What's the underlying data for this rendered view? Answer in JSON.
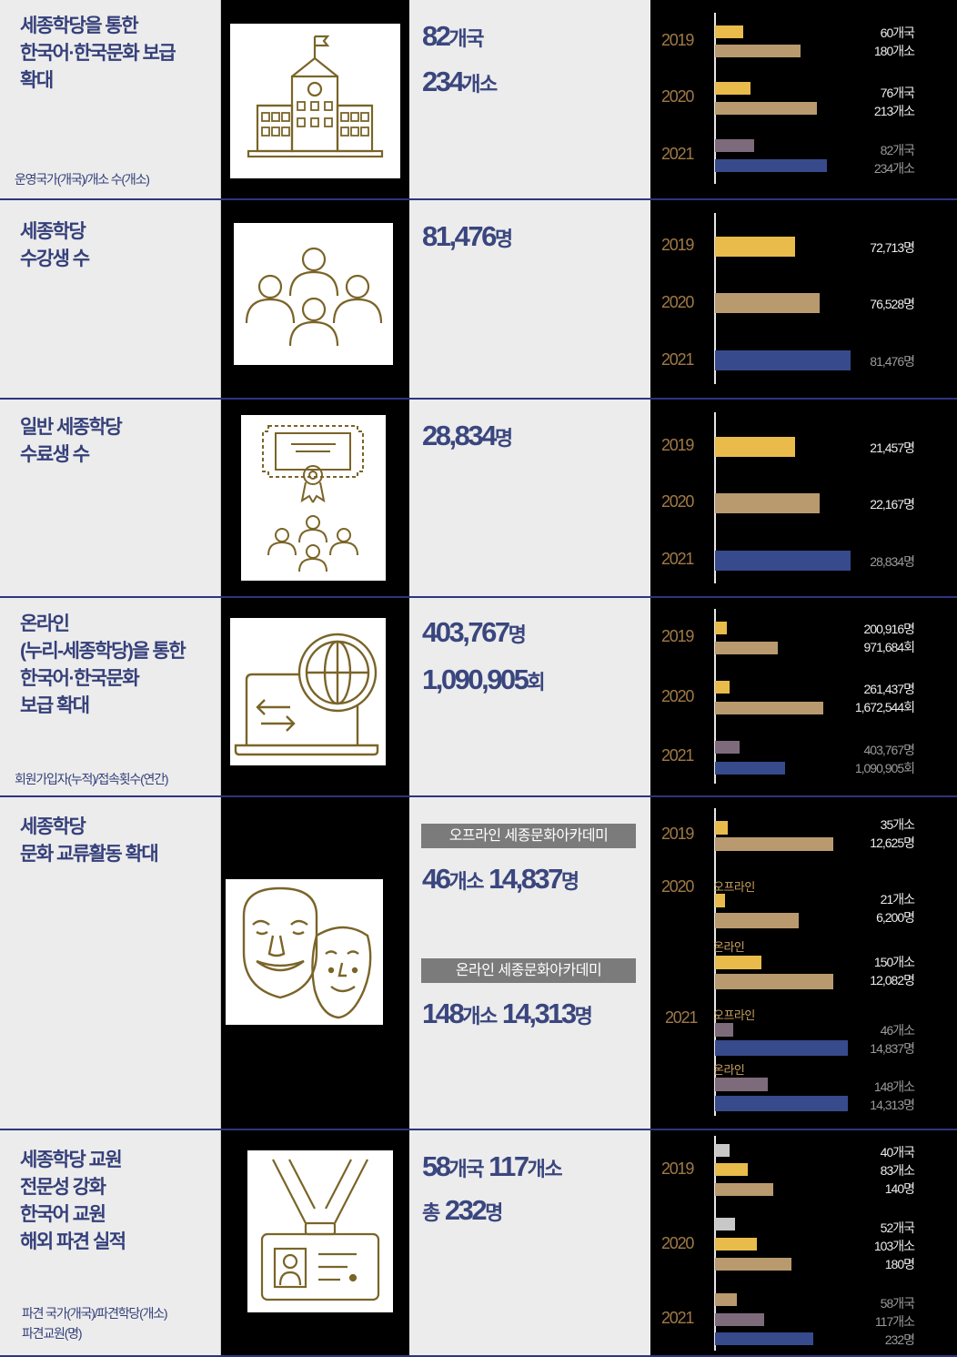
{
  "colors": {
    "yellow": "#e8bb4b",
    "tan": "#b99a6e",
    "navy": "#374a8c",
    "mauve": "#7d6b7c",
    "gray": "#c8c8c8",
    "accent_text": "#35407a"
  },
  "rows": [
    {
      "title": "세종학당을 통한\n한국어·한국문화 보급\n확대",
      "note": "운영국가(개국)/개소 수(개소)",
      "icon": "school-building-icon",
      "values": [
        {
          "num": "82",
          "unit": "개국"
        },
        {
          "num": "234",
          "unit": "개소"
        }
      ],
      "years": [
        "2019",
        "2020",
        "2021"
      ],
      "labels": [
        "60개국",
        "180개소",
        "76개국",
        "213개소",
        "82개국",
        "234개소"
      ]
    },
    {
      "title": "세종학당\n수강생 수",
      "icon": "students-group-icon",
      "values": [
        {
          "num": "81,476",
          "unit": "명"
        }
      ],
      "years": [
        "2019",
        "2020",
        "2021"
      ],
      "labels": [
        "72,713명",
        "76,528명",
        "81,476명"
      ]
    },
    {
      "title": "일반 세종학당\n수료생 수",
      "icon": "certificate-graduates-icon",
      "values": [
        {
          "num": "28,834",
          "unit": "명"
        }
      ],
      "years": [
        "2019",
        "2020",
        "2021"
      ],
      "labels": [
        "21,457명",
        "22,167명",
        "28,834명"
      ]
    },
    {
      "title": "온라인\n(누리-세종학당)을 통한\n한국어·한국문화\n보급 확대",
      "note": "회원가입자(누적)/접속횟수(연간)",
      "icon": "laptop-globe-icon",
      "values": [
        {
          "num": "403,767",
          "unit": "명"
        },
        {
          "num": "1,090,905",
          "unit": "회"
        }
      ],
      "years": [
        "2019",
        "2020",
        "2021"
      ],
      "labels": [
        "200,916명",
        "971,684회",
        "261,437명",
        "1,672,544회",
        "403,767명",
        "1,090,905회"
      ]
    },
    {
      "title": "세종학당\n문화 교류활동 확대",
      "icon": "traditional-masks-icon",
      "pills": [
        "오프라인 세종문화아카데미",
        "온라인 세종문화아카데미"
      ],
      "values": [
        {
          "num1": "46",
          "unit1": "개소",
          "num2": "14,837",
          "unit2": "명"
        },
        {
          "num1": "148",
          "unit1": "개소",
          "num2": "14,313",
          "unit2": "명"
        }
      ],
      "years": [
        "2019",
        "2020",
        "2021"
      ],
      "mini_labels": [
        "오프라인",
        "온라인",
        "오프라인",
        "온라인"
      ],
      "labels": [
        "35개소",
        "12,625명",
        "21개소",
        "6,200명",
        "150개소",
        "12,082명",
        "46개소",
        "14,837명",
        "148개소",
        "14,313명"
      ]
    },
    {
      "title": "세종학당 교원\n전문성 강화\n한국어 교원\n해외 파견 실적",
      "note": "파견 국가(개국)/파견학당(개소)\n파견교원(명)",
      "icon": "id-badge-lanyard-icon",
      "values": [
        {
          "num1": "58",
          "unit1": "개국",
          "num2": "117",
          "unit2": "개소"
        },
        {
          "prefix": "총",
          "num": "232",
          "unit": "명"
        }
      ],
      "years": [
        "2019",
        "2020",
        "2021"
      ],
      "labels": [
        "40개국",
        "83개소",
        "140명",
        "52개국",
        "103개소",
        "180명",
        "58개국",
        "117개소",
        "232명"
      ]
    }
  ]
}
